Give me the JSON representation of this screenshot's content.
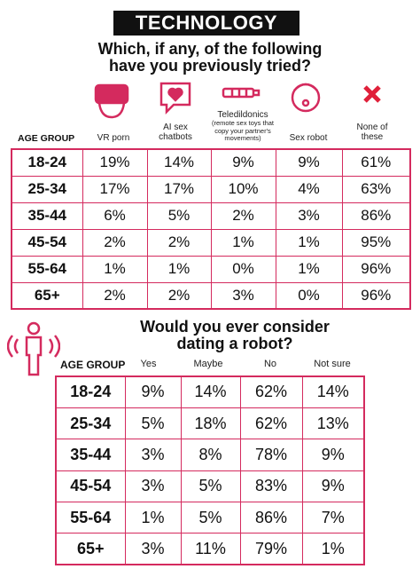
{
  "header": {
    "title": "TECHNOLOGY"
  },
  "table1": {
    "question": [
      "Which, if any, of the following",
      "have you previously tried?"
    ],
    "columns": [
      "AGE GROUP",
      "VR porn",
      "AI sex chatbots",
      "Teledildonics",
      "Sex robot",
      "None of these"
    ],
    "column_note": "(remote sex toys that copy your partner's movements)",
    "rows": [
      [
        "18-24",
        "19%",
        "14%",
        "9%",
        "9%",
        "61%"
      ],
      [
        "25-34",
        "17%",
        "17%",
        "10%",
        "4%",
        "63%"
      ],
      [
        "35-44",
        "6%",
        "5%",
        "2%",
        "3%",
        "86%"
      ],
      [
        "45-54",
        "2%",
        "2%",
        "1%",
        "1%",
        "95%"
      ],
      [
        "55-64",
        "1%",
        "1%",
        "0%",
        "1%",
        "96%"
      ],
      [
        "65+",
        "2%",
        "2%",
        "3%",
        "0%",
        "96%"
      ]
    ]
  },
  "table2": {
    "question": [
      "Would you ever consider",
      "dating a robot?"
    ],
    "columns": [
      "AGE GROUP",
      "Yes",
      "Maybe",
      "No",
      "Not sure"
    ],
    "rows": [
      [
        "18-24",
        "9%",
        "14%",
        "62%",
        "14%"
      ],
      [
        "25-34",
        "5%",
        "18%",
        "62%",
        "13%"
      ],
      [
        "35-44",
        "3%",
        "8%",
        "78%",
        "9%"
      ],
      [
        "45-54",
        "3%",
        "5%",
        "83%",
        "9%"
      ],
      [
        "55-64",
        "1%",
        "5%",
        "86%",
        "7%"
      ],
      [
        "65+",
        "3%",
        "11%",
        "79%",
        "1%"
      ]
    ]
  }
}
